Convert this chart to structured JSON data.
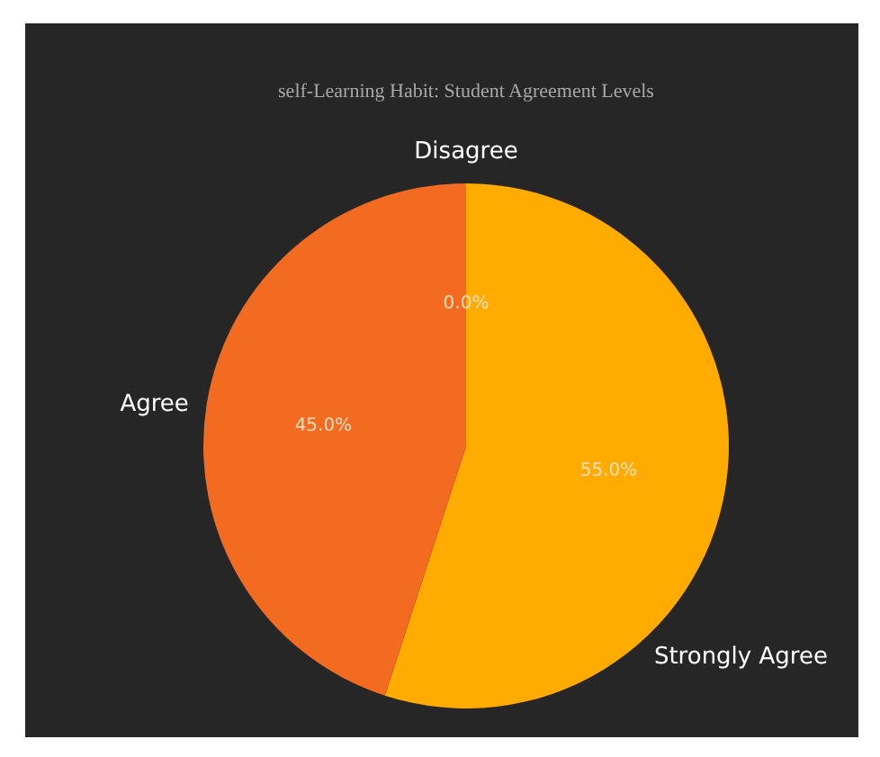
{
  "chart_data": {
    "type": "pie",
    "title": "self-Learning Habit: Student Agreement Levels",
    "categories": [
      "Disagree",
      "Strongly Agree",
      "Agree"
    ],
    "values": [
      0,
      55,
      45
    ],
    "colors": [
      "#e04b3a",
      "#ffab00",
      "#f26b21"
    ],
    "value_labels": [
      "0.0%",
      "55.0%",
      "45.0%"
    ]
  }
}
